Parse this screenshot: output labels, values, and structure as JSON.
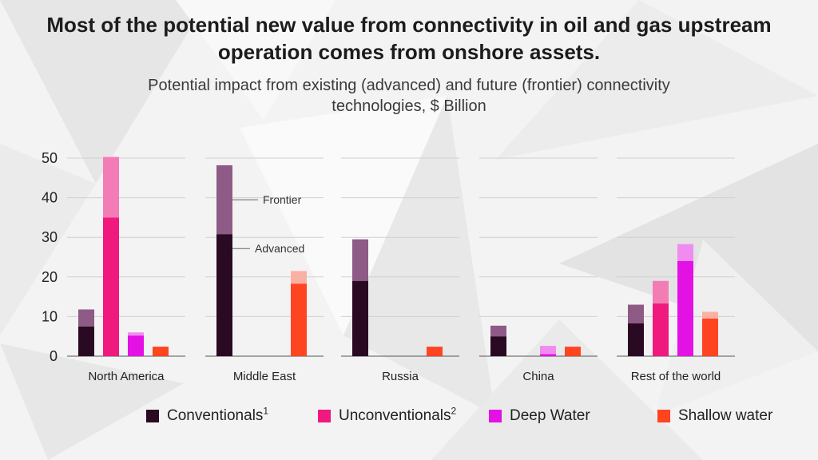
{
  "title": "Most of the potential new value from connectivity in oil and gas upstream operation comes from onshore assets.",
  "subtitle": "Potential impact from existing (advanced) and future (frontier) connectivity technologies, $ Billion",
  "colors": {
    "conventionals": "#2a0a22",
    "conventionals_frontier": "#8e5a86",
    "unconventionals": "#f0197e",
    "unconventionals_frontier": "#f47cb4",
    "deep_water": "#e411e4",
    "deep_water_frontier": "#f08cf0",
    "shallow_water": "#ff4422",
    "shallow_water_frontier": "#fbb0a4"
  },
  "annotations": {
    "frontier": "Frontier",
    "advanced": "Advanced"
  },
  "legend": [
    {
      "label": "Conventionals",
      "sup": "1",
      "color": "#2a0a22"
    },
    {
      "label": "Unconventionals",
      "sup": "2",
      "color": "#f0197e"
    },
    {
      "label": "Deep Water",
      "sup": "",
      "color": "#e411e4"
    },
    {
      "label": "Shallow water",
      "sup": "",
      "color": "#ff4422"
    }
  ],
  "chart_data": {
    "type": "bar",
    "stacked": true,
    "title": "Most of the potential new value from connectivity in oil and gas upstream operation comes from onshore assets.",
    "subtitle": "Potential impact from existing (advanced) and future (frontier) connectivity technologies, $ Billion",
    "ylabel": "$ Billion",
    "ylim": [
      0,
      50
    ],
    "yticks": [
      0,
      10,
      20,
      30,
      40,
      50
    ],
    "categories": [
      "North America",
      "Middle East",
      "Russia",
      "China",
      "Rest of the world"
    ],
    "segments": [
      "Conventionals",
      "Unconventionals",
      "Deep Water",
      "Shallow water"
    ],
    "stack_layers": [
      "Advanced",
      "Frontier"
    ],
    "series": [
      {
        "name": "Conventionals",
        "advanced": [
          7.5,
          30.8,
          19,
          5,
          8.3
        ],
        "total": [
          11.8,
          48.2,
          29.5,
          7.7,
          13
        ]
      },
      {
        "name": "Unconventionals",
        "advanced": [
          35,
          0,
          0,
          0,
          13.3
        ],
        "total": [
          50.3,
          0,
          0,
          0,
          19
        ]
      },
      {
        "name": "Deep Water",
        "advanced": [
          5.2,
          0,
          0,
          0.5,
          24
        ],
        "total": [
          6,
          0,
          0,
          2.6,
          28.3
        ]
      },
      {
        "name": "Shallow water",
        "advanced": [
          2.4,
          18.3,
          2.4,
          2.4,
          9.5
        ],
        "total": [
          2.4,
          21.5,
          2.4,
          2.4,
          11.2
        ]
      }
    ]
  }
}
